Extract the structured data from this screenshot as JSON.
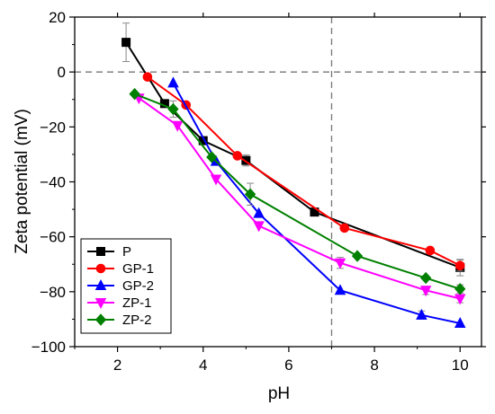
{
  "chart_data": {
    "type": "line",
    "xlabel": "pH",
    "ylabel": "Zeta potential (mV)",
    "xlim": [
      1,
      10.5
    ],
    "ylim": [
      -100,
      20
    ],
    "xticks": [
      2,
      4,
      6,
      8,
      10
    ],
    "yticks": [
      20,
      0,
      -20,
      -40,
      -60,
      -80,
      -100
    ],
    "ytick_labels": [
      "20",
      "0",
      "−20",
      "−40",
      "−60",
      "−80",
      "−100"
    ],
    "reference_lines": {
      "horizontal_y": 0,
      "vertical_x": 7
    },
    "legend_position": "bottom-left",
    "series": [
      {
        "name": "P",
        "color": "#000000",
        "marker": "square",
        "points": [
          {
            "x": 2.2,
            "y": 10.8,
            "err": 7
          },
          {
            "x": 3.1,
            "y": -11.5,
            "err": 0
          },
          {
            "x": 4.0,
            "y": -25.0,
            "err": 0
          },
          {
            "x": 5.0,
            "y": -32.2,
            "err": 2
          },
          {
            "x": 6.6,
            "y": -51.0,
            "err": 0
          },
          {
            "x": 10.0,
            "y": -71.2,
            "err": 3
          }
        ]
      },
      {
        "name": "GP-1",
        "color": "#ff0000",
        "marker": "circle",
        "points": [
          {
            "x": 2.7,
            "y": -1.8,
            "err": 0
          },
          {
            "x": 3.6,
            "y": -12.0,
            "err": 0
          },
          {
            "x": 4.8,
            "y": -30.5,
            "err": 0
          },
          {
            "x": 7.3,
            "y": -56.8,
            "err": 0
          },
          {
            "x": 9.3,
            "y": -65.0,
            "err": 0
          },
          {
            "x": 10.0,
            "y": -70.5,
            "err": 2
          }
        ]
      },
      {
        "name": "GP-2",
        "color": "#0000ff",
        "marker": "triangle-up",
        "points": [
          {
            "x": 3.3,
            "y": -4.0,
            "err": 0
          },
          {
            "x": 4.3,
            "y": -32.5,
            "err": 0
          },
          {
            "x": 5.3,
            "y": -51.5,
            "err": 0
          },
          {
            "x": 7.2,
            "y": -79.5,
            "err": 0
          },
          {
            "x": 9.1,
            "y": -88.5,
            "err": 1.5
          },
          {
            "x": 10.0,
            "y": -91.5,
            "err": 0
          }
        ]
      },
      {
        "name": "ZP-1",
        "color": "#ff00ff",
        "marker": "triangle-down",
        "points": [
          {
            "x": 2.5,
            "y": -9.5,
            "err": 0
          },
          {
            "x": 3.4,
            "y": -19.5,
            "err": 0
          },
          {
            "x": 4.3,
            "y": -39.0,
            "err": 0
          },
          {
            "x": 5.3,
            "y": -56.0,
            "err": 0
          },
          {
            "x": 7.2,
            "y": -69.5,
            "err": 2
          },
          {
            "x": 9.2,
            "y": -79.5,
            "err": 1.5
          },
          {
            "x": 10.0,
            "y": -82.5,
            "err": 1.5
          }
        ]
      },
      {
        "name": "ZP-2",
        "color": "#008000",
        "marker": "diamond",
        "points": [
          {
            "x": 2.4,
            "y": -8.0,
            "err": 0
          },
          {
            "x": 3.3,
            "y": -13.5,
            "err": 3
          },
          {
            "x": 4.2,
            "y": -31.0,
            "err": 0
          },
          {
            "x": 5.1,
            "y": -44.5,
            "err": 4
          },
          {
            "x": 7.6,
            "y": -67.0,
            "err": 0
          },
          {
            "x": 9.2,
            "y": -75.0,
            "err": 0
          },
          {
            "x": 10.0,
            "y": -79.0,
            "err": 1.5
          }
        ]
      }
    ]
  }
}
